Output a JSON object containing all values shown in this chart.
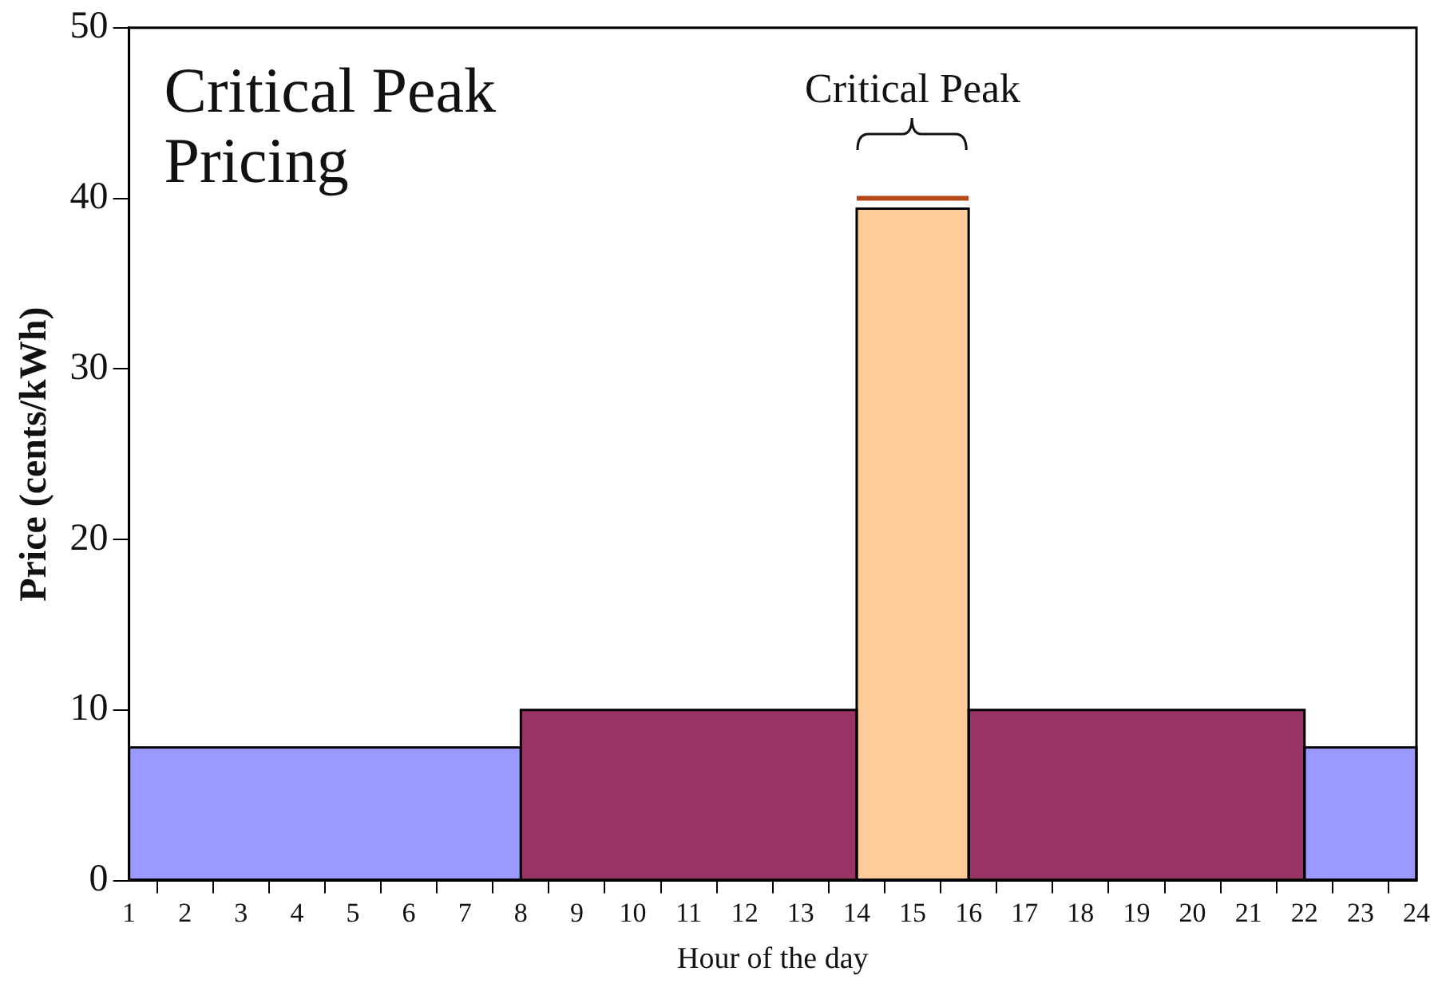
{
  "chart_data": {
    "type": "histogram",
    "title": "Critical Peak Pricing",
    "xlabel": "Hour of the day",
    "ylabel": "Price (cents/kWh)",
    "bins": [
      1,
      8,
      14,
      16,
      22,
      24
    ],
    "values": [
      7.8,
      10,
      39.4,
      10,
      7.8
    ],
    "colors": [
      "#9999ff",
      "#993366",
      "#ffcc99",
      "#993366",
      "#9999ff"
    ],
    "series": [
      {
        "type": "line",
        "x": [
          14,
          16
        ],
        "values": [
          40,
          40
        ],
        "color": "#b5481a"
      }
    ],
    "annotations": [
      "Critical Peak"
    ],
    "xlim": [
      1,
      24
    ],
    "xticks": [
      1,
      2,
      3,
      4,
      5,
      6,
      7,
      8,
      9,
      10,
      11,
      12,
      13,
      14,
      15,
      16,
      17,
      18,
      19,
      20,
      21,
      22,
      23,
      24
    ],
    "ylim": [
      0,
      50
    ],
    "yticks": [
      0,
      10,
      20,
      30,
      40,
      50
    ],
    "grid": false,
    "legend": false
  }
}
